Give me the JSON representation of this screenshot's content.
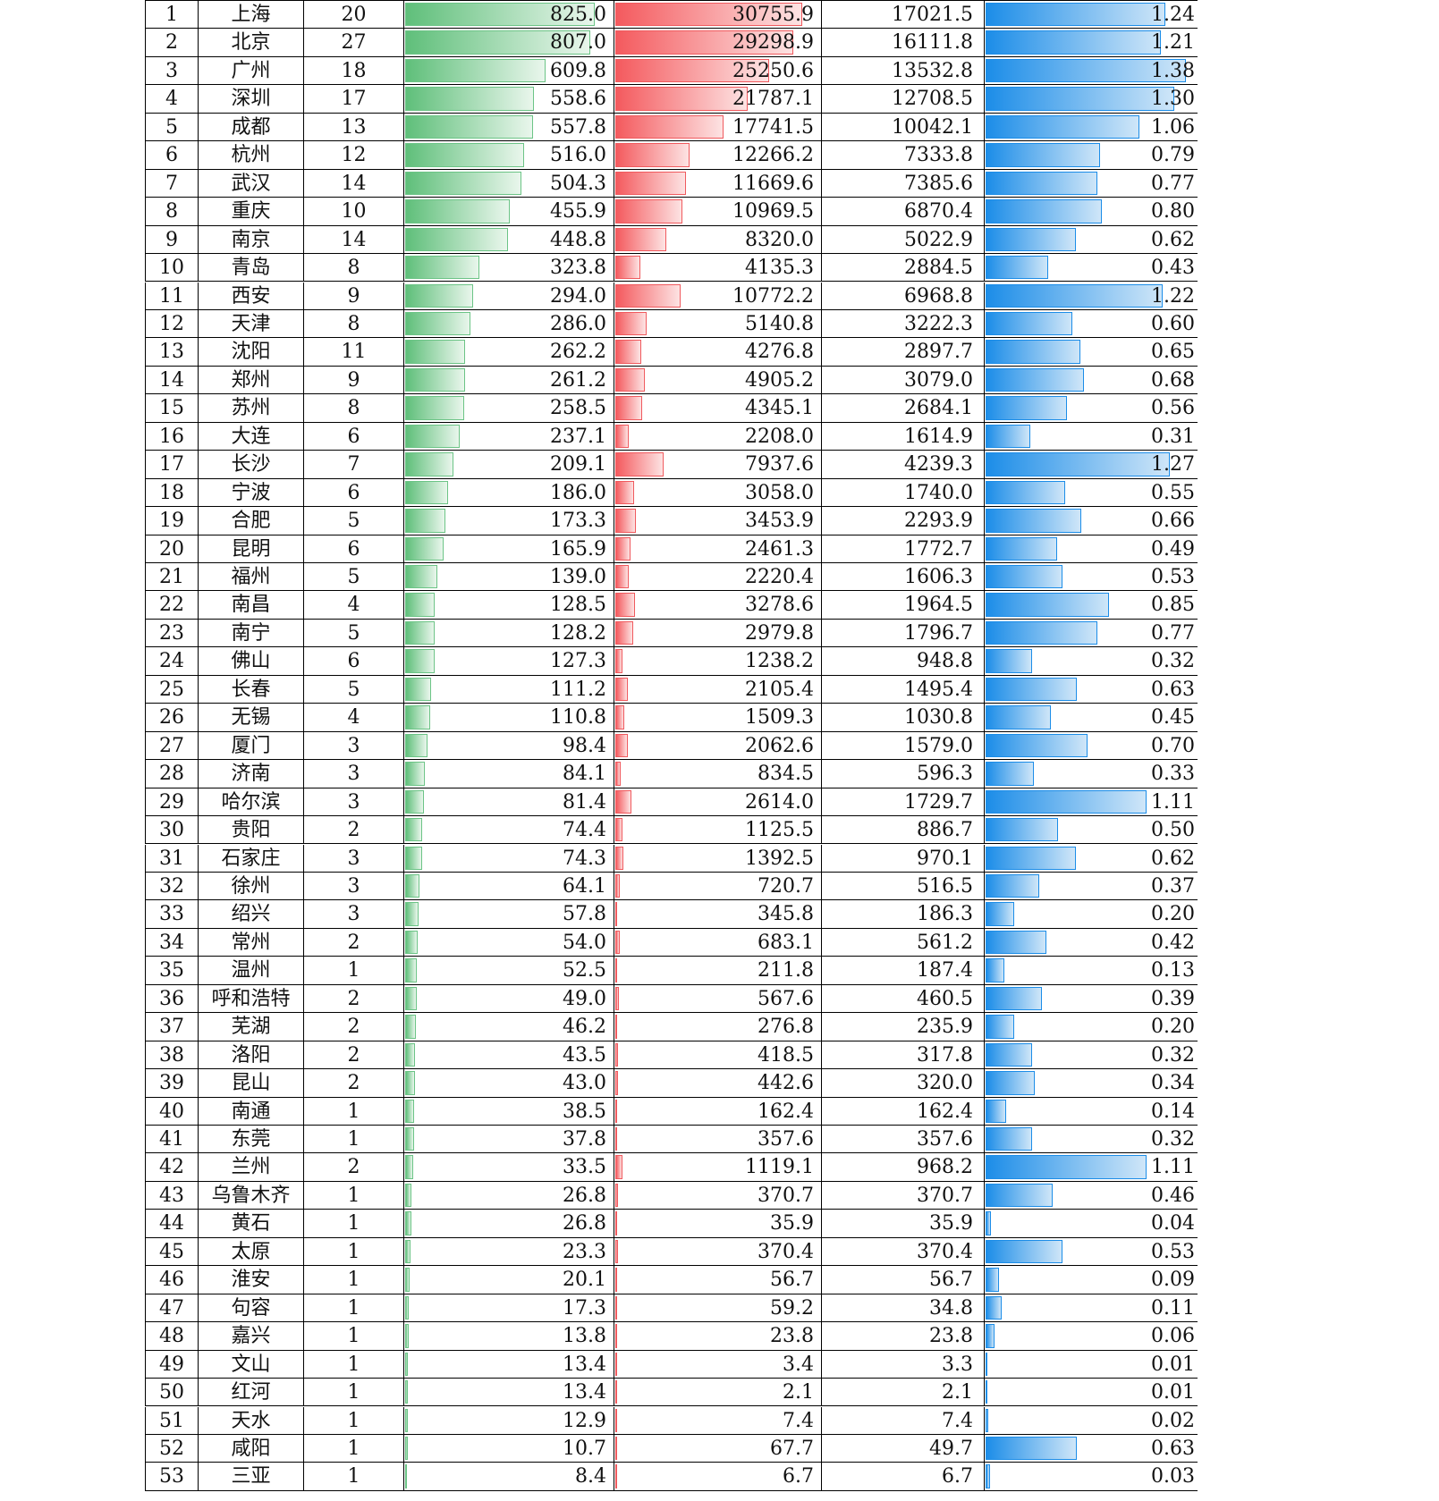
{
  "colors": {
    "green_bar": "#5fbf7a",
    "red_bar": "#f45a5e",
    "blue_bar": "#1c8de8"
  },
  "rows": [
    {
      "rank": "1",
      "city": "上海",
      "count": "20",
      "a": "825.0",
      "b": "30755.9",
      "c": "17021.5",
      "d": "1.24"
    },
    {
      "rank": "2",
      "city": "北京",
      "count": "27",
      "a": "807.0",
      "b": "29298.9",
      "c": "16111.8",
      "d": "1.21"
    },
    {
      "rank": "3",
      "city": "广州",
      "count": "18",
      "a": "609.8",
      "b": "25250.6",
      "c": "13532.8",
      "d": "1.38"
    },
    {
      "rank": "4",
      "city": "深圳",
      "count": "17",
      "a": "558.6",
      "b": "21787.1",
      "c": "12708.5",
      "d": "1.30"
    },
    {
      "rank": "5",
      "city": "成都",
      "count": "13",
      "a": "557.8",
      "b": "17741.5",
      "c": "10042.1",
      "d": "1.06"
    },
    {
      "rank": "6",
      "city": "杭州",
      "count": "12",
      "a": "516.0",
      "b": "12266.2",
      "c": "7333.8",
      "d": "0.79"
    },
    {
      "rank": "7",
      "city": "武汉",
      "count": "14",
      "a": "504.3",
      "b": "11669.6",
      "c": "7385.6",
      "d": "0.77"
    },
    {
      "rank": "8",
      "city": "重庆",
      "count": "10",
      "a": "455.9",
      "b": "10969.5",
      "c": "6870.4",
      "d": "0.80"
    },
    {
      "rank": "9",
      "city": "南京",
      "count": "14",
      "a": "448.8",
      "b": "8320.0",
      "c": "5022.9",
      "d": "0.62"
    },
    {
      "rank": "10",
      "city": "青岛",
      "count": "8",
      "a": "323.8",
      "b": "4135.3",
      "c": "2884.5",
      "d": "0.43"
    },
    {
      "rank": "11",
      "city": "西安",
      "count": "9",
      "a": "294.0",
      "b": "10772.2",
      "c": "6968.8",
      "d": "1.22"
    },
    {
      "rank": "12",
      "city": "天津",
      "count": "8",
      "a": "286.0",
      "b": "5140.8",
      "c": "3222.3",
      "d": "0.60"
    },
    {
      "rank": "13",
      "city": "沈阳",
      "count": "11",
      "a": "262.2",
      "b": "4276.8",
      "c": "2897.7",
      "d": "0.65"
    },
    {
      "rank": "14",
      "city": "郑州",
      "count": "9",
      "a": "261.2",
      "b": "4905.2",
      "c": "3079.0",
      "d": "0.68"
    },
    {
      "rank": "15",
      "city": "苏州",
      "count": "8",
      "a": "258.5",
      "b": "4345.1",
      "c": "2684.1",
      "d": "0.56"
    },
    {
      "rank": "16",
      "city": "大连",
      "count": "6",
      "a": "237.1",
      "b": "2208.0",
      "c": "1614.9",
      "d": "0.31"
    },
    {
      "rank": "17",
      "city": "长沙",
      "count": "7",
      "a": "209.1",
      "b": "7937.6",
      "c": "4239.3",
      "d": "1.27"
    },
    {
      "rank": "18",
      "city": "宁波",
      "count": "6",
      "a": "186.0",
      "b": "3058.0",
      "c": "1740.0",
      "d": "0.55"
    },
    {
      "rank": "19",
      "city": "合肥",
      "count": "5",
      "a": "173.3",
      "b": "3453.9",
      "c": "2293.9",
      "d": "0.66"
    },
    {
      "rank": "20",
      "city": "昆明",
      "count": "6",
      "a": "165.9",
      "b": "2461.3",
      "c": "1772.7",
      "d": "0.49"
    },
    {
      "rank": "21",
      "city": "福州",
      "count": "5",
      "a": "139.0",
      "b": "2220.4",
      "c": "1606.3",
      "d": "0.53"
    },
    {
      "rank": "22",
      "city": "南昌",
      "count": "4",
      "a": "128.5",
      "b": "3278.6",
      "c": "1964.5",
      "d": "0.85"
    },
    {
      "rank": "23",
      "city": "南宁",
      "count": "5",
      "a": "128.2",
      "b": "2979.8",
      "c": "1796.7",
      "d": "0.77"
    },
    {
      "rank": "24",
      "city": "佛山",
      "count": "6",
      "a": "127.3",
      "b": "1238.2",
      "c": "948.8",
      "d": "0.32"
    },
    {
      "rank": "25",
      "city": "长春",
      "count": "5",
      "a": "111.2",
      "b": "2105.4",
      "c": "1495.4",
      "d": "0.63"
    },
    {
      "rank": "26",
      "city": "无锡",
      "count": "4",
      "a": "110.8",
      "b": "1509.3",
      "c": "1030.8",
      "d": "0.45"
    },
    {
      "rank": "27",
      "city": "厦门",
      "count": "3",
      "a": "98.4",
      "b": "2062.6",
      "c": "1579.0",
      "d": "0.70"
    },
    {
      "rank": "28",
      "city": "济南",
      "count": "3",
      "a": "84.1",
      "b": "834.5",
      "c": "596.3",
      "d": "0.33"
    },
    {
      "rank": "29",
      "city": "哈尔滨",
      "count": "3",
      "a": "81.4",
      "b": "2614.0",
      "c": "1729.7",
      "d": "1.11"
    },
    {
      "rank": "30",
      "city": "贵阳",
      "count": "2",
      "a": "74.4",
      "b": "1125.5",
      "c": "886.7",
      "d": "0.50"
    },
    {
      "rank": "31",
      "city": "石家庄",
      "count": "3",
      "a": "74.3",
      "b": "1392.5",
      "c": "970.1",
      "d": "0.62"
    },
    {
      "rank": "32",
      "city": "徐州",
      "count": "3",
      "a": "64.1",
      "b": "720.7",
      "c": "516.5",
      "d": "0.37"
    },
    {
      "rank": "33",
      "city": "绍兴",
      "count": "3",
      "a": "57.8",
      "b": "345.8",
      "c": "186.3",
      "d": "0.20"
    },
    {
      "rank": "34",
      "city": "常州",
      "count": "2",
      "a": "54.0",
      "b": "683.1",
      "c": "561.2",
      "d": "0.42"
    },
    {
      "rank": "35",
      "city": "温州",
      "count": "1",
      "a": "52.5",
      "b": "211.8",
      "c": "187.4",
      "d": "0.13"
    },
    {
      "rank": "36",
      "city": "呼和浩特",
      "count": "2",
      "a": "49.0",
      "b": "567.6",
      "c": "460.5",
      "d": "0.39"
    },
    {
      "rank": "37",
      "city": "芜湖",
      "count": "2",
      "a": "46.2",
      "b": "276.8",
      "c": "235.9",
      "d": "0.20"
    },
    {
      "rank": "38",
      "city": "洛阳",
      "count": "2",
      "a": "43.5",
      "b": "418.5",
      "c": "317.8",
      "d": "0.32"
    },
    {
      "rank": "39",
      "city": "昆山",
      "count": "2",
      "a": "43.0",
      "b": "442.6",
      "c": "320.0",
      "d": "0.34"
    },
    {
      "rank": "40",
      "city": "南通",
      "count": "1",
      "a": "38.5",
      "b": "162.4",
      "c": "162.4",
      "d": "0.14"
    },
    {
      "rank": "41",
      "city": "东莞",
      "count": "1",
      "a": "37.8",
      "b": "357.6",
      "c": "357.6",
      "d": "0.32"
    },
    {
      "rank": "42",
      "city": "兰州",
      "count": "2",
      "a": "33.5",
      "b": "1119.1",
      "c": "968.2",
      "d": "1.11"
    },
    {
      "rank": "43",
      "city": "乌鲁木齐",
      "count": "1",
      "a": "26.8",
      "b": "370.7",
      "c": "370.7",
      "d": "0.46"
    },
    {
      "rank": "44",
      "city": "黄石",
      "count": "1",
      "a": "26.8",
      "b": "35.9",
      "c": "35.9",
      "d": "0.04"
    },
    {
      "rank": "45",
      "city": "太原",
      "count": "1",
      "a": "23.3",
      "b": "370.4",
      "c": "370.4",
      "d": "0.53"
    },
    {
      "rank": "46",
      "city": "淮安",
      "count": "1",
      "a": "20.1",
      "b": "56.7",
      "c": "56.7",
      "d": "0.09"
    },
    {
      "rank": "47",
      "city": "句容",
      "count": "1",
      "a": "17.3",
      "b": "59.2",
      "c": "34.8",
      "d": "0.11"
    },
    {
      "rank": "48",
      "city": "嘉兴",
      "count": "1",
      "a": "13.8",
      "b": "23.8",
      "c": "23.8",
      "d": "0.06"
    },
    {
      "rank": "49",
      "city": "文山",
      "count": "1",
      "a": "13.4",
      "b": "3.4",
      "c": "3.3",
      "d": "0.01"
    },
    {
      "rank": "50",
      "city": "红河",
      "count": "1",
      "a": "13.4",
      "b": "2.1",
      "c": "2.1",
      "d": "0.01"
    },
    {
      "rank": "51",
      "city": "天水",
      "count": "1",
      "a": "12.9",
      "b": "7.4",
      "c": "7.4",
      "d": "0.02"
    },
    {
      "rank": "52",
      "city": "咸阳",
      "count": "1",
      "a": "10.7",
      "b": "67.7",
      "c": "49.7",
      "d": "0.63"
    },
    {
      "rank": "53",
      "city": "三亚",
      "count": "1",
      "a": "8.4",
      "b": "6.7",
      "c": "6.7",
      "d": "0.03"
    }
  ]
}
